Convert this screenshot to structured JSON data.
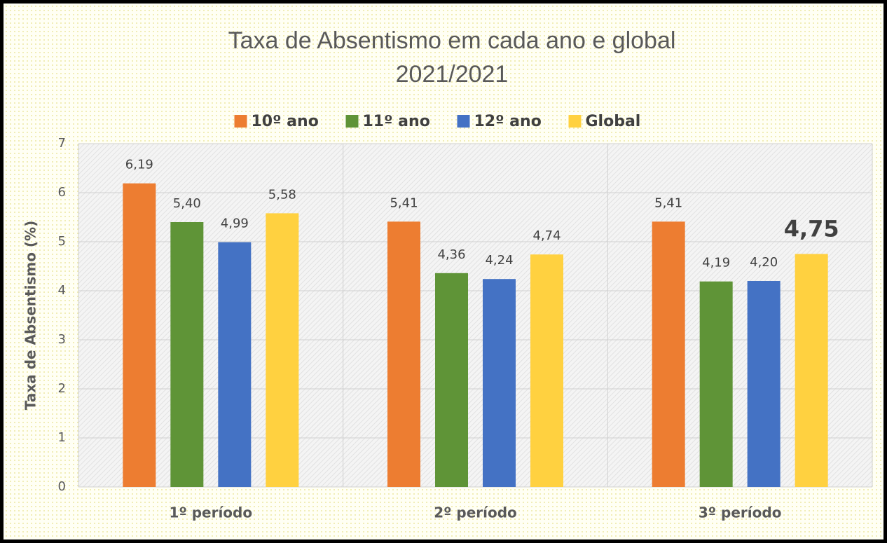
{
  "chart_data": {
    "type": "bar",
    "title": "Taxa de Absentismo em cada ano e global",
    "subtitle": "2021/2021",
    "y_label": "Taxa de Absentismo (%)",
    "categories": [
      "1º período",
      "2º período",
      "3º período"
    ],
    "series": [
      {
        "name": "10º ano",
        "color": "#ed7d31",
        "values": [
          6.19,
          5.41,
          5.41
        ],
        "value_labels": [
          "6,19",
          "5,41",
          "5,41"
        ]
      },
      {
        "name": "11º ano",
        "color": "#5f9437",
        "values": [
          5.4,
          4.36,
          4.19
        ],
        "value_labels": [
          "5,40",
          "4,36",
          "4,19"
        ]
      },
      {
        "name": "12º ano",
        "color": "#4472c4",
        "values": [
          4.99,
          4.24,
          4.2
        ],
        "value_labels": [
          "4,99",
          "4,24",
          "4,20"
        ]
      },
      {
        "name": "Global",
        "color": "#ffd140",
        "values": [
          5.58,
          4.74,
          4.75
        ],
        "value_labels": [
          "5,58",
          "4,74",
          "4,75"
        ]
      }
    ],
    "ylim": [
      0,
      7
    ],
    "yticks": [
      0,
      1,
      2,
      3,
      4,
      5,
      6,
      7
    ],
    "grid": true,
    "legend": "top"
  }
}
